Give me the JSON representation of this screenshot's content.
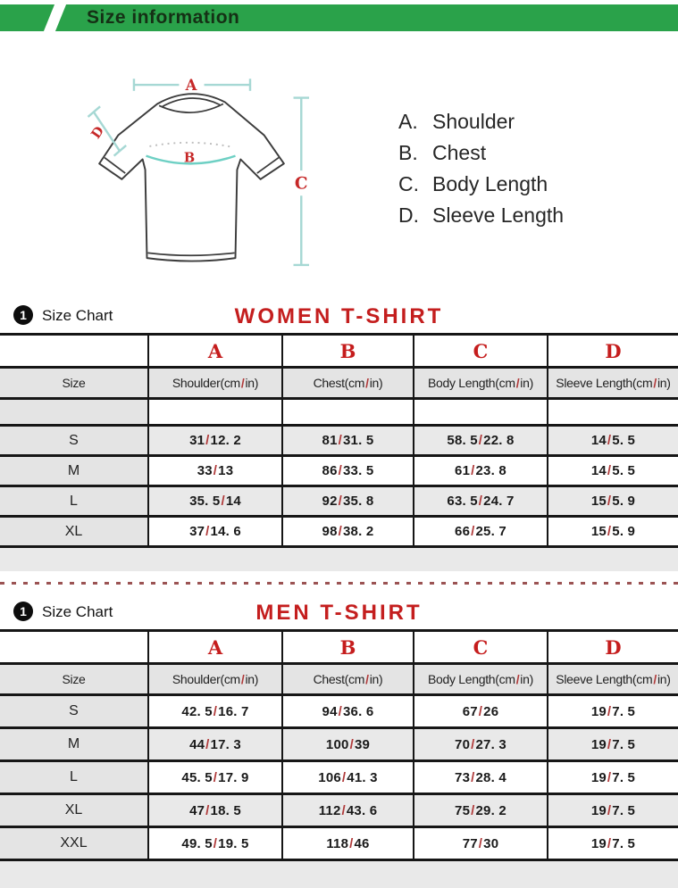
{
  "header": {
    "title": "Size information",
    "bg_color": "#2aa24a"
  },
  "diagram": {
    "labels": {
      "a": "A",
      "b": "B",
      "c": "C",
      "d": "D"
    },
    "legend": [
      {
        "key": "A.",
        "label": "Shoulder"
      },
      {
        "key": "B.",
        "label": "Chest"
      },
      {
        "key": "C.",
        "label": "Body Length"
      },
      {
        "key": "D.",
        "label": "Sleeve Length"
      }
    ],
    "line_color": "#a6d8d4",
    "chest_curve_color": "#6ed0c4",
    "label_color": "#c62828"
  },
  "accent_colors": {
    "title_red": "#c41e1e",
    "slash_red": "#b03a3a",
    "green": "#2aa24a"
  },
  "sections": [
    {
      "badge": "1",
      "heading": "Size Chart",
      "title": "WOMEN T-SHIRT",
      "table": {
        "letter_row": [
          "",
          "A",
          "B",
          "C",
          "D"
        ],
        "header_row": [
          "Size",
          "Shoulder(cm / in)",
          "Chest(cm / in)",
          "Body Length(cm / in)",
          "Sleeve Length(cm / in)"
        ],
        "empty_row": true,
        "rows": [
          [
            "S",
            "31/12. 2",
            "81/31. 5",
            "58. 5/22. 8",
            "14/5. 5"
          ],
          [
            "M",
            "33/13",
            "86/33. 5",
            "61/23. 8",
            "14/5. 5"
          ],
          [
            "L",
            "35. 5/14",
            "92/35. 8",
            "63. 5/24. 7",
            "15/5. 9"
          ],
          [
            "XL",
            "37/14. 6",
            "98/38. 2",
            "66/25. 7",
            "15/5. 9"
          ]
        ]
      }
    },
    {
      "badge": "1",
      "heading": "Size Chart",
      "title": "MEN T-SHIRT",
      "table": {
        "letter_row": [
          "",
          "A",
          "B",
          "C",
          "D"
        ],
        "header_row": [
          "Size",
          "Shoulder(cm / in)",
          "Chest(cm / in)",
          "Body Length(cm / in)",
          "Sleeve Length(cm / in)"
        ],
        "empty_row": false,
        "rows": [
          [
            "S",
            "42. 5/16. 7",
            "94/36. 6",
            "67/26",
            "19/7. 5"
          ],
          [
            "M",
            "44/17. 3",
            "100/39",
            "70/27. 3",
            "19/7. 5"
          ],
          [
            "L",
            "45. 5/17. 9",
            "106/41. 3",
            "73/28. 4",
            "19/7. 5"
          ],
          [
            "XL",
            "47/18. 5",
            "112/43. 6",
            "75/29. 2",
            "19/7. 5"
          ],
          [
            "XXL",
            "49. 5/19. 5",
            "118/46",
            "77/30",
            "19/7. 5"
          ]
        ]
      }
    }
  ]
}
